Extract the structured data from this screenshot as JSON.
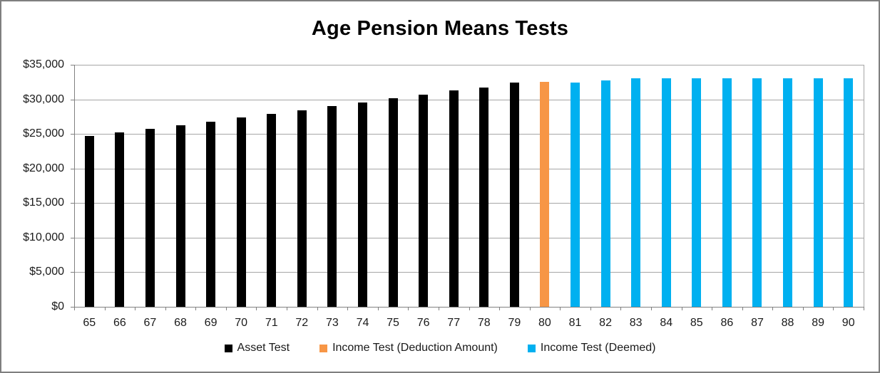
{
  "chart_data": {
    "type": "bar",
    "title": "Age Pension Means Tests",
    "categories": [
      "65",
      "66",
      "67",
      "68",
      "69",
      "70",
      "71",
      "72",
      "73",
      "74",
      "75",
      "76",
      "77",
      "78",
      "79",
      "80",
      "81",
      "82",
      "83",
      "84",
      "85",
      "86",
      "87",
      "88",
      "89",
      "90"
    ],
    "series": [
      {
        "name": "Asset Test",
        "color": "#000000",
        "values": [
          24700,
          25250,
          25750,
          26250,
          26800,
          27400,
          27900,
          28450,
          29050,
          29550,
          30150,
          30700,
          31300,
          31750,
          32400,
          null,
          null,
          null,
          null,
          null,
          null,
          null,
          null,
          null,
          null,
          null
        ]
      },
      {
        "name": "Income Test (Deduction Amount)",
        "color": "#F79646",
        "values": [
          null,
          null,
          null,
          null,
          null,
          null,
          null,
          null,
          null,
          null,
          null,
          null,
          null,
          null,
          null,
          32500,
          null,
          null,
          null,
          null,
          null,
          null,
          null,
          null,
          null,
          null
        ]
      },
      {
        "name": "Income Test (Deemed)",
        "color": "#00B0F0",
        "values": [
          null,
          null,
          null,
          null,
          null,
          null,
          null,
          null,
          null,
          null,
          null,
          null,
          null,
          null,
          null,
          null,
          32400,
          32750,
          33000,
          33000,
          33000,
          33000,
          33000,
          33000,
          33000,
          33000
        ]
      }
    ],
    "xlabel": "",
    "ylabel": "",
    "ylim": [
      0,
      35000
    ],
    "ytick_interval": 5000,
    "yticks": [
      {
        "value": 0,
        "label": "$0"
      },
      {
        "value": 5000,
        "label": "$5,000"
      },
      {
        "value": 10000,
        "label": "$10,000"
      },
      {
        "value": 15000,
        "label": "$15,000"
      },
      {
        "value": 20000,
        "label": "$20,000"
      },
      {
        "value": 25000,
        "label": "$25,000"
      },
      {
        "value": 30000,
        "label": "$30,000"
      },
      {
        "value": 35000,
        "label": "$35,000"
      }
    ],
    "grid": true,
    "legend_position": "bottom",
    "colors": {
      "gridline": "#A6A6A6",
      "axis": "#808080",
      "text": "#1a1a1a",
      "frame_border": "#7f7f7f",
      "background": "#ffffff"
    }
  }
}
